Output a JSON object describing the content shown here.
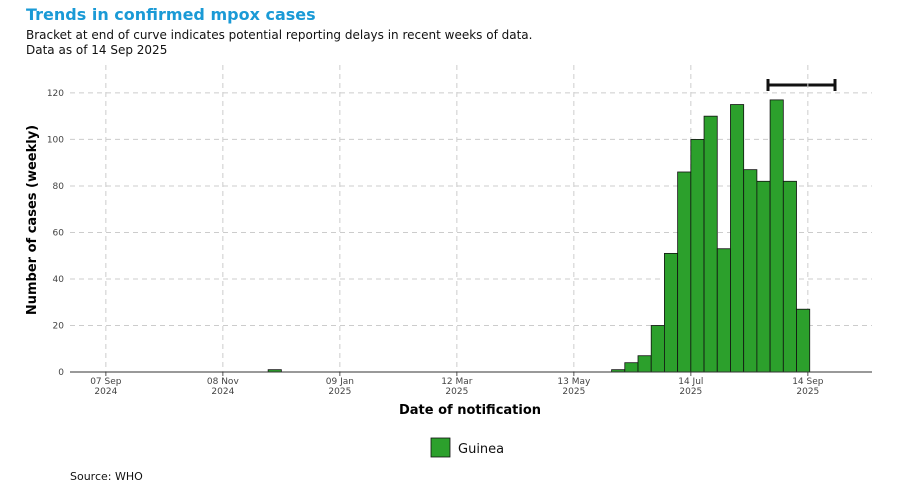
{
  "chart_data": {
    "type": "bar",
    "title": "Trends in confirmed mpox cases",
    "subtitle": "Bracket at end of curve indicates potential reporting delays in recent weeks of data.\nData as of 14 Sep 2025",
    "x_label": "Date of notification",
    "y_label": "Number of cases (weekly)",
    "source": "Source: WHO",
    "x": [
      "2024-12-02",
      "2025-06-02",
      "2025-06-09",
      "2025-06-16",
      "2025-06-23",
      "2025-06-30",
      "2025-07-07",
      "2025-07-14",
      "2025-07-21",
      "2025-07-28",
      "2025-08-04",
      "2025-08-11",
      "2025-08-18",
      "2025-08-25",
      "2025-09-01",
      "2025-09-08"
    ],
    "series": [
      {
        "name": "Guinea",
        "color": "#2ca02c",
        "values": [
          1,
          1,
          4,
          7,
          20,
          51,
          86,
          100,
          110,
          53,
          115,
          87,
          82,
          117,
          82,
          27
        ]
      }
    ],
    "xlim": [
      "2024-08-19",
      "2025-10-18"
    ],
    "xticks": [
      {
        "value": "2024-09-07",
        "label": "07 Sep\n2024"
      },
      {
        "value": "2024-11-08",
        "label": "08 Nov\n2024"
      },
      {
        "value": "2025-01-09",
        "label": "09 Jan\n2025"
      },
      {
        "value": "2025-03-12",
        "label": "12 Mar\n2025"
      },
      {
        "value": "2025-05-13",
        "label": "13 May\n2025"
      },
      {
        "value": "2025-07-14",
        "label": "14 Jul\n2025"
      },
      {
        "value": "2025-09-14",
        "label": "14 Sep\n2025"
      }
    ],
    "ylim": [
      0,
      132
    ],
    "yticks": [
      0,
      20,
      40,
      60,
      80,
      100,
      120
    ],
    "grid": true
  }
}
